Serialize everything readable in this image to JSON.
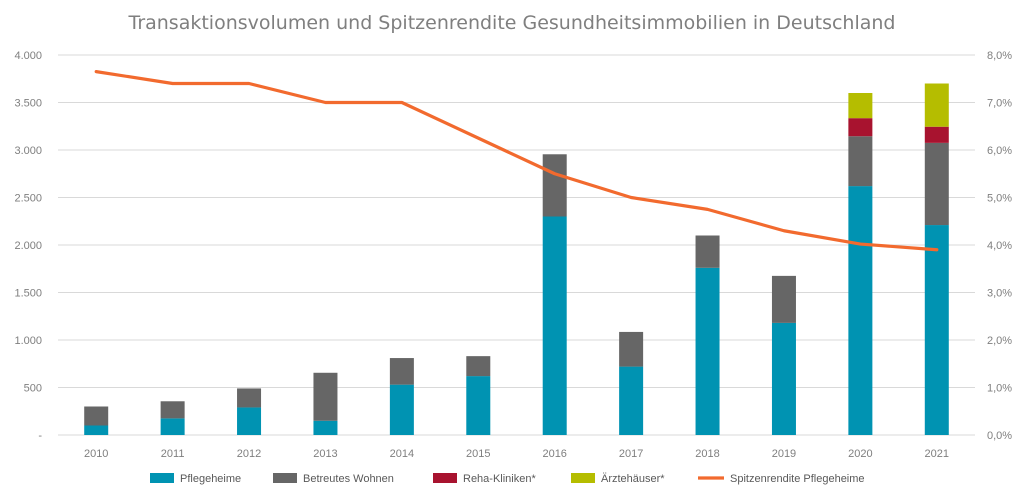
{
  "chart_data": {
    "type": "bar",
    "title": "Transaktionsvolumen und Spitzenrendite Gesundheitsimmobilien in Deutschland",
    "categories": [
      "2010",
      "2011",
      "2012",
      "2013",
      "2014",
      "2015",
      "2016",
      "2017",
      "2018",
      "2019",
      "2020",
      "2021"
    ],
    "stacked": true,
    "ylim": [
      0,
      4000
    ],
    "y_ticks": [
      0,
      500,
      1000,
      1500,
      2000,
      2500,
      3000,
      3500,
      4000
    ],
    "y_tick_labels": [
      "-",
      "500",
      "1.000",
      "1.500",
      "2.000",
      "2.500",
      "3.000",
      "3.500",
      "4.000"
    ],
    "y2lim": [
      0,
      8
    ],
    "y2_tick_labels": [
      "0,0%",
      "1,0%",
      "2,0%",
      "3,0%",
      "4,0%",
      "5,0%",
      "6,0%",
      "7,0%",
      "8,0%"
    ],
    "grid": true,
    "legend_position": "bottom",
    "series": [
      {
        "name": "Pflegeheime",
        "kind": "bar",
        "color": "#0093b2",
        "values": [
          100,
          175,
          290,
          150,
          530,
          620,
          2300,
          720,
          1760,
          1180,
          2620,
          2210
        ]
      },
      {
        "name": "Betreutes Wohnen",
        "kind": "bar",
        "color": "#666666",
        "values": [
          200,
          180,
          200,
          505,
          280,
          210,
          655,
          365,
          340,
          495,
          525,
          865
        ]
      },
      {
        "name": "Reha-Kliniken*",
        "kind": "bar",
        "color": "#a8132f",
        "values": [
          0,
          0,
          0,
          0,
          0,
          0,
          0,
          0,
          0,
          0,
          190,
          170
        ]
      },
      {
        "name": "Ärztehäuser*",
        "kind": "bar",
        "color": "#b5bd00",
        "values": [
          0,
          0,
          0,
          0,
          0,
          0,
          0,
          0,
          0,
          0,
          265,
          455
        ]
      },
      {
        "name": "Spitzenrendite Pflegeheime",
        "kind": "line",
        "axis": "right",
        "color": "#f26a2e",
        "values": [
          7.65,
          7.4,
          7.4,
          7.0,
          7.0,
          6.25,
          5.5,
          5.0,
          4.75,
          4.3,
          4.02,
          3.9
        ]
      }
    ]
  }
}
